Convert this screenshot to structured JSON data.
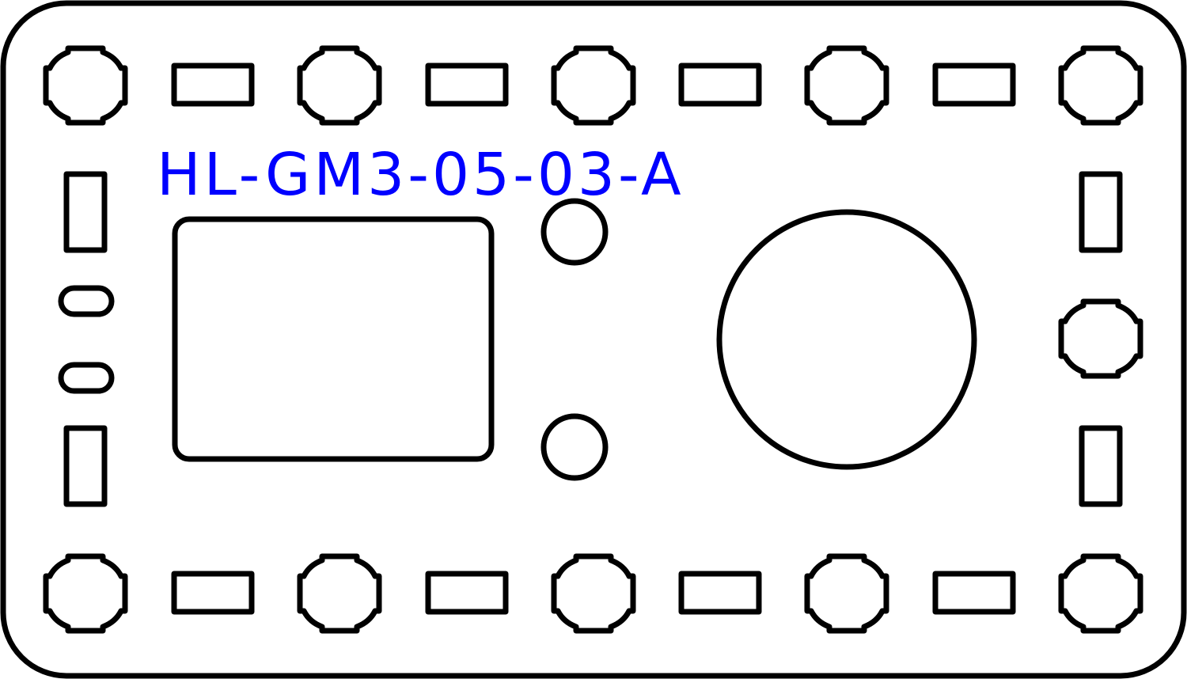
{
  "part": {
    "label": "HL-GM3-05-03-A",
    "label_color": "#0000ff",
    "outline_color": "#000000",
    "background_color": "#ffffff"
  }
}
